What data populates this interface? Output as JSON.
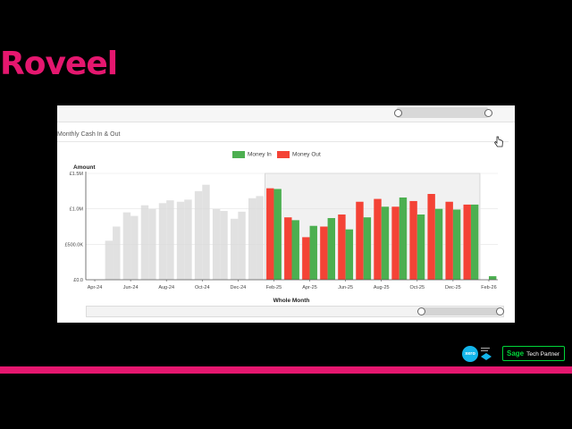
{
  "brand": {
    "logo_text": "Roveel",
    "accent": "#e5176f"
  },
  "panel": {
    "title": "Monthly Cash In & Out"
  },
  "legend": [
    {
      "label": "Money In",
      "color": "#4caf50"
    },
    {
      "label": "Money Out",
      "color": "#f44336"
    }
  ],
  "chart_data": {
    "type": "bar",
    "title": "Monthly Cash In & Out",
    "ylabel": "Amount",
    "xlabel": "Whole Month",
    "ylim": [
      0,
      1500000
    ],
    "y_ticks": [
      "£0.0",
      "£500.0K",
      "£1.0M",
      "£1.5M"
    ],
    "x_ticks": [
      "Apr-24",
      "Jun-24",
      "Aug-24",
      "Oct-24",
      "Dec-24",
      "Feb-25",
      "Apr-25",
      "Jun-25",
      "Aug-25",
      "Oct-25",
      "Dec-25",
      "Feb-26"
    ],
    "categories": [
      "Apr-24",
      "May-24",
      "Jun-24",
      "Jul-24",
      "Aug-24",
      "Sep-24",
      "Oct-24",
      "Nov-24",
      "Dec-24",
      "Jan-25",
      "Feb-25",
      "Mar-25",
      "Apr-25",
      "May-25",
      "Jun-25",
      "Jul-25",
      "Aug-25",
      "Sep-25",
      "Oct-25",
      "Nov-25",
      "Dec-25",
      "Jan-26",
      "Feb-26"
    ],
    "series": [
      {
        "name": "Money Out",
        "color": "#f44336",
        "values": [
          0,
          550000,
          950000,
          1050000,
          1080000,
          1100000,
          1250000,
          1000000,
          860000,
          1150000,
          1290000,
          880000,
          600000,
          750000,
          920000,
          1100000,
          1140000,
          1030000,
          1110000,
          1210000,
          1100000,
          1060000,
          0
        ]
      },
      {
        "name": "Money In",
        "color": "#4caf50",
        "values": [
          0,
          750000,
          900000,
          1000000,
          1120000,
          1130000,
          1340000,
          970000,
          960000,
          1180000,
          1280000,
          840000,
          760000,
          870000,
          710000,
          880000,
          1030000,
          1160000,
          920000,
          1000000,
          990000,
          1060000,
          50000
        ]
      }
    ],
    "faded_months": [
      "Apr-24",
      "May-24",
      "Jun-24",
      "Jul-24",
      "Aug-24",
      "Sep-24",
      "Oct-24",
      "Nov-24",
      "Dec-24",
      "Jan-25"
    ],
    "selected_range": [
      "Feb-25",
      "Jan-26"
    ],
    "grid": true,
    "legend_position": "top-center"
  },
  "partners": {
    "xero_label": "xero",
    "sage_word": "Sage",
    "sage_rest": "Tech Partner"
  }
}
